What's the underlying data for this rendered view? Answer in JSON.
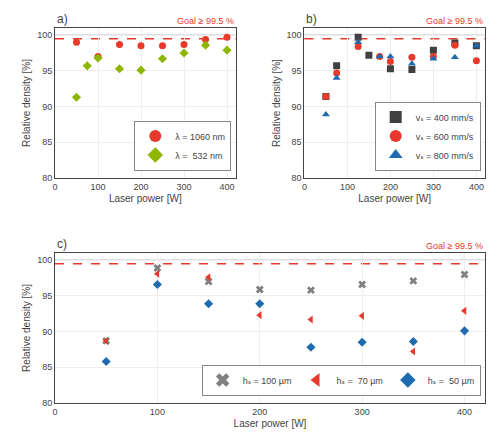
{
  "chart_data": [
    {
      "type": "scatter",
      "title": "a)",
      "xlabel": "Laser power [W]",
      "ylabel": "Relative density [%]",
      "xlim": [
        0,
        420
      ],
      "ylim": [
        80,
        101
      ],
      "xticks": [
        0,
        100,
        200,
        300,
        400
      ],
      "yticks": [
        80,
        85,
        90,
        95,
        100
      ],
      "grid": true,
      "legend": "lower right",
      "series": [
        {
          "name": "λ = 1060 nm",
          "color": "#e8392a",
          "marker": "circle",
          "x": [
            50,
            100,
            150,
            200,
            250,
            300,
            350,
            400
          ],
          "values": [
            99.0,
            97.0,
            98.7,
            98.5,
            98.5,
            98.7,
            99.4,
            99.7
          ]
        },
        {
          "name": "λ =  532 nm",
          "color": "#8db600",
          "marker": "diamond",
          "x": [
            50,
            75,
            100,
            150,
            200,
            250,
            300,
            350,
            400
          ],
          "values": [
            91.3,
            95.7,
            96.8,
            95.3,
            95.1,
            96.7,
            97.5,
            98.6,
            97.9
          ]
        }
      ],
      "reference_lines": [
        {
          "y": 100,
          "color": "#aaaaaa",
          "line_style": "solid"
        },
        {
          "y": 99.5,
          "color": "#e8392a",
          "line_style": "dashed",
          "label": "Goal ≥ 99.5 %"
        }
      ]
    },
    {
      "type": "scatter",
      "title": "b)",
      "xlabel": "Laser power [W]",
      "ylabel": "Relative density [%]",
      "xlim": [
        0,
        420
      ],
      "ylim": [
        80,
        101
      ],
      "xticks": [
        0,
        100,
        200,
        300,
        400
      ],
      "yticks": [
        80,
        85,
        90,
        95,
        100
      ],
      "grid": true,
      "legend": "lower right",
      "series": [
        {
          "name": "vₛ = 400 mm/s",
          "color": "#404040",
          "marker": "square",
          "x": [
            50,
            75,
            125,
            150,
            200,
            250,
            300,
            350,
            400
          ],
          "values": [
            91.4,
            95.7,
            99.7,
            97.2,
            95.3,
            95.2,
            97.9,
            98.9,
            98.5
          ]
        },
        {
          "name": "vₛ = 600 mm/s",
          "color": "#e8392a",
          "marker": "circle",
          "x": [
            50,
            75,
            125,
            175,
            200,
            250,
            300,
            350,
            400
          ],
          "values": [
            91.4,
            94.7,
            98.4,
            97.0,
            96.3,
            96.9,
            97.0,
            98.6,
            96.4
          ]
        },
        {
          "name": "vₛ = 800 mm/s",
          "color": "#1f6bb0",
          "marker": "triangle-up",
          "x": [
            50,
            75,
            125,
            175,
            200,
            250,
            300,
            350,
            400
          ],
          "values": [
            88.9,
            94.0,
            99.0,
            97.0,
            97.0,
            96.0,
            96.7,
            96.9,
            98.5
          ]
        }
      ],
      "reference_lines": [
        {
          "y": 100,
          "color": "#aaaaaa",
          "line_style": "solid"
        },
        {
          "y": 99.5,
          "color": "#e8392a",
          "line_style": "dashed",
          "label": "Goal ≥ 99.5 %"
        }
      ]
    },
    {
      "type": "scatter",
      "title": "c)",
      "xlabel": "Laser power [W]",
      "ylabel": "Relative density [%]",
      "xlim": [
        0,
        420
      ],
      "ylim": [
        80,
        101
      ],
      "xticks": [
        0,
        100,
        200,
        300,
        400
      ],
      "yticks": [
        80,
        85,
        90,
        95,
        100
      ],
      "grid": true,
      "legend": "lower right",
      "series": [
        {
          "name": "hₛ = 100 µm",
          "color": "#808080",
          "marker": "x",
          "x": [
            50,
            100,
            150,
            200,
            250,
            300,
            350,
            400
          ],
          "values": [
            88.7,
            98.9,
            97.0,
            95.9,
            95.8,
            96.6,
            97.1,
            98.0
          ]
        },
        {
          "name": "hₛ =  70 µm",
          "color": "#e8392a",
          "marker": "triangle-left",
          "x": [
            50,
            100,
            150,
            200,
            250,
            300,
            350,
            400
          ],
          "values": [
            88.7,
            98.1,
            97.6,
            92.3,
            91.7,
            92.2,
            87.2,
            92.9
          ]
        },
        {
          "name": "hₛ =  50 µm",
          "color": "#1f6bb0",
          "marker": "diamond",
          "x": [
            50,
            100,
            150,
            200,
            250,
            300,
            350,
            400
          ],
          "values": [
            85.8,
            96.6,
            93.9,
            93.9,
            87.8,
            88.5,
            88.6,
            90.1
          ]
        }
      ],
      "reference_lines": [
        {
          "y": 100,
          "color": "#aaaaaa",
          "line_style": "solid"
        },
        {
          "y": 99.5,
          "color": "#e8392a",
          "line_style": "dashed",
          "label": "Goal ≥ 99.5 %"
        }
      ]
    }
  ]
}
